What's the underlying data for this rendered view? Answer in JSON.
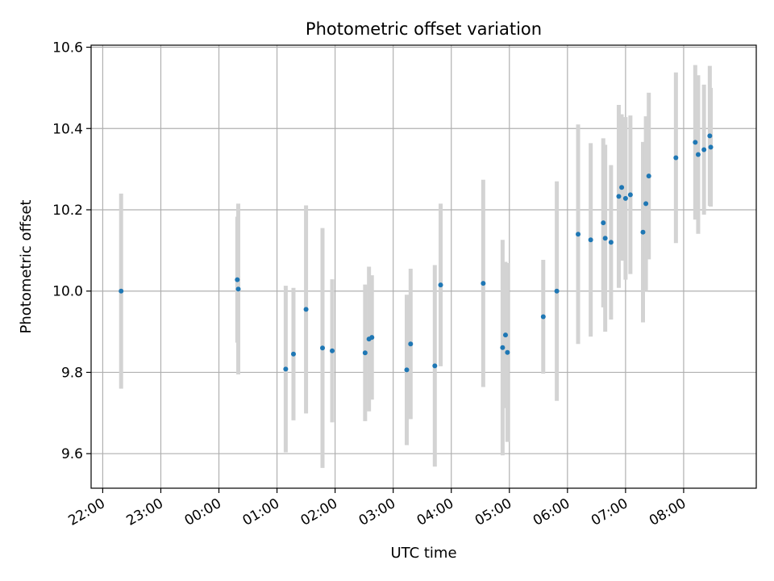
{
  "chart_data": {
    "type": "scatter",
    "title": "Photometric offset variation",
    "xlabel": "UTC time",
    "ylabel": "Photometric offset",
    "x_axis_type": "time",
    "x_start": "22:00",
    "xlim": [
      "21:48",
      "09:15"
    ],
    "ylim": [
      9.515,
      10.605
    ],
    "xticks": [
      "22:00",
      "23:00",
      "00:00",
      "01:00",
      "02:00",
      "03:00",
      "04:00",
      "05:00",
      "06:00",
      "07:00",
      "08:00"
    ],
    "yticks": [
      9.6,
      9.8,
      10.0,
      10.2,
      10.4,
      10.6
    ],
    "ytick_labels": [
      "9.6",
      "9.8",
      "10.0",
      "10.2",
      "10.4",
      "10.6"
    ],
    "grid": true,
    "legend": false,
    "colors": {
      "point": "#1f77b4",
      "errorbar": "#d3d3d3",
      "grid": "#b0b0b0"
    },
    "series": [
      {
        "points": [
          {
            "x": "22:19",
            "y": 10.0,
            "err": 0.24
          },
          {
            "x": "00:19",
            "y": 10.028,
            "err": 0.155
          },
          {
            "x": "00:20",
            "y": 10.005,
            "err": 0.21
          },
          {
            "x": "01:09",
            "y": 9.808,
            "err": 0.205
          },
          {
            "x": "01:17",
            "y": 9.845,
            "err": 0.163
          },
          {
            "x": "01:30",
            "y": 9.955,
            "err": 0.256
          },
          {
            "x": "01:47",
            "y": 9.86,
            "err": 0.295
          },
          {
            "x": "01:57",
            "y": 9.853,
            "err": 0.176
          },
          {
            "x": "02:31",
            "y": 9.848,
            "err": 0.168
          },
          {
            "x": "02:35",
            "y": 9.882,
            "err": 0.178
          },
          {
            "x": "02:38",
            "y": 9.886,
            "err": 0.153
          },
          {
            "x": "03:14",
            "y": 9.806,
            "err": 0.185
          },
          {
            "x": "03:18",
            "y": 9.87,
            "err": 0.185
          },
          {
            "x": "03:43",
            "y": 9.816,
            "err": 0.248
          },
          {
            "x": "03:49",
            "y": 10.015,
            "err": 0.2
          },
          {
            "x": "04:33",
            "y": 10.019,
            "err": 0.255
          },
          {
            "x": "04:53",
            "y": 9.861,
            "err": 0.265
          },
          {
            "x": "04:56",
            "y": 9.892,
            "err": 0.18
          },
          {
            "x": "04:58",
            "y": 9.849,
            "err": 0.22
          },
          {
            "x": "05:35",
            "y": 9.937,
            "err": 0.14
          },
          {
            "x": "05:49",
            "y": 10.0,
            "err": 0.27
          },
          {
            "x": "06:11",
            "y": 10.14,
            "err": 0.27
          },
          {
            "x": "06:24",
            "y": 10.126,
            "err": 0.238
          },
          {
            "x": "06:37",
            "y": 10.168,
            "err": 0.208
          },
          {
            "x": "06:39",
            "y": 10.13,
            "err": 0.23
          },
          {
            "x": "06:45",
            "y": 10.12,
            "err": 0.19
          },
          {
            "x": "06:53",
            "y": 10.233,
            "err": 0.225
          },
          {
            "x": "06:56",
            "y": 10.255,
            "err": 0.18
          },
          {
            "x": "07:00",
            "y": 10.228,
            "err": 0.2
          },
          {
            "x": "07:05",
            "y": 10.237,
            "err": 0.195
          },
          {
            "x": "07:18",
            "y": 10.145,
            "err": 0.222
          },
          {
            "x": "07:21",
            "y": 10.215,
            "err": 0.215
          },
          {
            "x": "07:24",
            "y": 10.283,
            "err": 0.205
          },
          {
            "x": "07:52",
            "y": 10.328,
            "err": 0.21
          },
          {
            "x": "08:12",
            "y": 10.366,
            "err": 0.19
          },
          {
            "x": "08:15",
            "y": 10.336,
            "err": 0.195
          },
          {
            "x": "08:21",
            "y": 10.348,
            "err": 0.16
          },
          {
            "x": "08:27",
            "y": 10.382,
            "err": 0.172
          },
          {
            "x": "08:28",
            "y": 10.354,
            "err": 0.146
          }
        ]
      }
    ]
  }
}
